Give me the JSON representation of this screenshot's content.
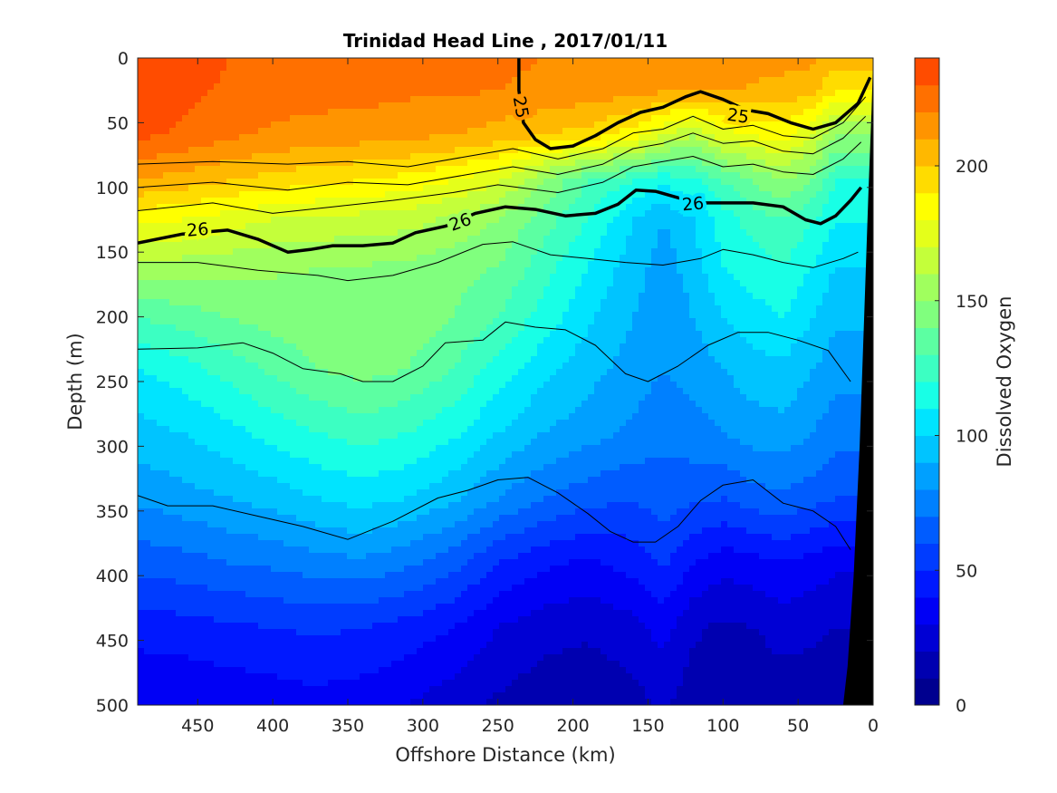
{
  "chart_data": {
    "type": "heatmap",
    "subtype": "filled-contour",
    "title": "Trinidad Head Line , 2017/01/11",
    "xlabel": "Offshore Distance (km)",
    "ylabel": "Depth (m)",
    "colorbar_label": "Dissolved Oxygen",
    "xlim": [
      490,
      0
    ],
    "ylim": [
      0,
      500
    ],
    "x_reversed": true,
    "y_reversed": true,
    "x_ticks": [
      450,
      400,
      350,
      300,
      250,
      200,
      150,
      100,
      50,
      0
    ],
    "x_tick_labels": [
      "450",
      "400",
      "350",
      "300",
      "250",
      "200",
      "150",
      "100",
      "50",
      "0"
    ],
    "y_ticks": [
      0,
      50,
      100,
      150,
      200,
      250,
      300,
      350,
      400,
      450,
      500
    ],
    "y_tick_labels": [
      "0",
      "50",
      "100",
      "150",
      "200",
      "250",
      "300",
      "350",
      "400",
      "450",
      "500"
    ],
    "colorbar_range": [
      0,
      240
    ],
    "colorbar_ticks": [
      0,
      50,
      100,
      150,
      200
    ],
    "colorbar_tick_labels": [
      "0",
      "50",
      "100",
      "150",
      "200"
    ],
    "colorbar_step": 10,
    "colormap": [
      "#00008f",
      "#0000b0",
      "#0000d4",
      "#0000f5",
      "#0018ff",
      "#003cff",
      "#005cff",
      "#0080ff",
      "#00a0ff",
      "#00c4ff",
      "#00e4ff",
      "#18ffe6",
      "#3cffc2",
      "#5cffa2",
      "#80ff7e",
      "#a0ff5e",
      "#c4ff3a",
      "#e4ff1a",
      "#ffff00",
      "#ffdc00",
      "#ffb800",
      "#ff9400",
      "#ff7000",
      "#ff4c00",
      "#ff2a00",
      "#f00000",
      "#d00000",
      "#a00000"
    ],
    "x": [
      490,
      460,
      430,
      400,
      370,
      340,
      310,
      280,
      250,
      220,
      190,
      160,
      140,
      120,
      100,
      80,
      60,
      40,
      25
    ],
    "depths": [
      0,
      25,
      60,
      95,
      125,
      160,
      200,
      240,
      290,
      340,
      390,
      440,
      500
    ],
    "values": [
      [
        238,
        236,
        230,
        228,
        226,
        226,
        224,
        224,
        222,
        220,
        220,
        218,
        218,
        216,
        218,
        215,
        214,
        212,
        205
      ],
      [
        236,
        234,
        228,
        225,
        224,
        224,
        222,
        222,
        220,
        218,
        216,
        214,
        212,
        210,
        212,
        208,
        206,
        204,
        190
      ],
      [
        232,
        228,
        222,
        218,
        216,
        214,
        212,
        210,
        205,
        200,
        196,
        184,
        170,
        160,
        175,
        180,
        185,
        170,
        150
      ],
      [
        210,
        205,
        200,
        196,
        192,
        190,
        186,
        180,
        172,
        150,
        130,
        120,
        112,
        118,
        130,
        140,
        150,
        140,
        120
      ],
      [
        182,
        180,
        175,
        170,
        168,
        166,
        164,
        158,
        150,
        135,
        120,
        100,
        90,
        100,
        115,
        125,
        130,
        120,
        110
      ],
      [
        158,
        156,
        154,
        152,
        150,
        150,
        148,
        144,
        140,
        125,
        110,
        95,
        85,
        95,
        110,
        115,
        120,
        110,
        100
      ],
      [
        130,
        135,
        140,
        144,
        146,
        148,
        146,
        140,
        130,
        116,
        102,
        90,
        82,
        90,
        100,
        106,
        110,
        100,
        92
      ],
      [
        110,
        116,
        124,
        132,
        140,
        144,
        140,
        130,
        116,
        104,
        94,
        86,
        80,
        84,
        90,
        96,
        98,
        90,
        84
      ],
      [
        96,
        100,
        106,
        114,
        120,
        124,
        120,
        112,
        100,
        90,
        84,
        78,
        72,
        76,
        80,
        84,
        86,
        80,
        74
      ],
      [
        82,
        86,
        90,
        94,
        100,
        104,
        100,
        92,
        80,
        70,
        64,
        60,
        66,
        62,
        60,
        66,
        68,
        64,
        60
      ],
      [
        64,
        66,
        70,
        72,
        76,
        78,
        72,
        64,
        50,
        42,
        38,
        44,
        52,
        40,
        34,
        36,
        40,
        36,
        32
      ],
      [
        44,
        46,
        48,
        50,
        52,
        50,
        46,
        40,
        30,
        24,
        22,
        26,
        34,
        22,
        18,
        20,
        24,
        22,
        20
      ],
      [
        30,
        30,
        32,
        34,
        36,
        34,
        30,
        24,
        18,
        14,
        12,
        16,
        22,
        14,
        10,
        12,
        14,
        14,
        12
      ]
    ],
    "contour_lines": [
      {
        "label": "25",
        "bold": true,
        "points": [
          [
            236,
            0
          ],
          [
            236,
            25
          ],
          [
            233,
            50
          ],
          [
            225,
            63
          ],
          [
            215,
            70
          ],
          [
            200,
            68
          ],
          [
            185,
            60
          ],
          [
            170,
            50
          ],
          [
            155,
            42
          ],
          [
            140,
            38
          ],
          [
            125,
            30
          ],
          [
            115,
            26
          ],
          [
            100,
            32
          ],
          [
            85,
            40
          ],
          [
            70,
            43
          ],
          [
            55,
            50
          ],
          [
            40,
            55
          ],
          [
            25,
            50
          ],
          [
            10,
            35
          ],
          [
            2,
            15
          ]
        ]
      },
      {
        "label": "26",
        "bold": true,
        "points": [
          [
            490,
            143
          ],
          [
            460,
            136
          ],
          [
            430,
            133
          ],
          [
            410,
            140
          ],
          [
            390,
            150
          ],
          [
            375,
            148
          ],
          [
            360,
            145
          ],
          [
            340,
            145
          ],
          [
            320,
            143
          ],
          [
            305,
            135
          ],
          [
            285,
            130
          ],
          [
            265,
            120
          ],
          [
            245,
            115
          ],
          [
            225,
            117
          ],
          [
            205,
            122
          ],
          [
            185,
            120
          ],
          [
            170,
            113
          ],
          [
            158,
            102
          ],
          [
            145,
            103
          ],
          [
            130,
            108
          ],
          [
            115,
            112
          ],
          [
            100,
            112
          ],
          [
            80,
            112
          ],
          [
            60,
            115
          ],
          [
            45,
            125
          ],
          [
            35,
            128
          ],
          [
            25,
            122
          ],
          [
            15,
            110
          ],
          [
            8,
            100
          ]
        ]
      },
      {
        "label": "",
        "bold": false,
        "points": [
          [
            490,
            82
          ],
          [
            440,
            80
          ],
          [
            390,
            82
          ],
          [
            350,
            80
          ],
          [
            310,
            84
          ],
          [
            270,
            76
          ],
          [
            240,
            70
          ],
          [
            210,
            78
          ],
          [
            180,
            70
          ],
          [
            160,
            58
          ],
          [
            140,
            55
          ],
          [
            120,
            45
          ],
          [
            100,
            55
          ],
          [
            80,
            52
          ],
          [
            60,
            60
          ],
          [
            40,
            62
          ],
          [
            20,
            50
          ],
          [
            5,
            30
          ]
        ]
      },
      {
        "label": "",
        "bold": false,
        "points": [
          [
            490,
            100
          ],
          [
            440,
            96
          ],
          [
            390,
            102
          ],
          [
            350,
            96
          ],
          [
            310,
            98
          ],
          [
            270,
            90
          ],
          [
            240,
            84
          ],
          [
            210,
            90
          ],
          [
            180,
            82
          ],
          [
            160,
            70
          ],
          [
            140,
            66
          ],
          [
            120,
            58
          ],
          [
            100,
            66
          ],
          [
            80,
            64
          ],
          [
            60,
            72
          ],
          [
            40,
            74
          ],
          [
            20,
            62
          ],
          [
            5,
            45
          ]
        ]
      },
      {
        "label": "",
        "bold": false,
        "points": [
          [
            490,
            118
          ],
          [
            440,
            112
          ],
          [
            400,
            120
          ],
          [
            360,
            115
          ],
          [
            320,
            110
          ],
          [
            280,
            104
          ],
          [
            250,
            98
          ],
          [
            210,
            104
          ],
          [
            180,
            96
          ],
          [
            160,
            84
          ],
          [
            140,
            80
          ],
          [
            120,
            76
          ],
          [
            100,
            84
          ],
          [
            80,
            82
          ],
          [
            60,
            88
          ],
          [
            40,
            90
          ],
          [
            20,
            78
          ],
          [
            8,
            65
          ]
        ]
      },
      {
        "label": "",
        "bold": false,
        "points": [
          [
            490,
            158
          ],
          [
            450,
            158
          ],
          [
            410,
            164
          ],
          [
            370,
            168
          ],
          [
            350,
            172
          ],
          [
            320,
            168
          ],
          [
            290,
            158
          ],
          [
            260,
            144
          ],
          [
            240,
            142
          ],
          [
            215,
            152
          ],
          [
            190,
            155
          ],
          [
            165,
            158
          ],
          [
            140,
            160
          ],
          [
            115,
            155
          ],
          [
            100,
            148
          ],
          [
            80,
            152
          ],
          [
            60,
            158
          ],
          [
            40,
            162
          ],
          [
            20,
            155
          ],
          [
            10,
            150
          ]
        ]
      },
      {
        "label": "",
        "bold": false,
        "points": [
          [
            490,
            225
          ],
          [
            450,
            224
          ],
          [
            420,
            220
          ],
          [
            400,
            228
          ],
          [
            380,
            240
          ],
          [
            355,
            244
          ],
          [
            340,
            250
          ],
          [
            320,
            250
          ],
          [
            300,
            238
          ],
          [
            285,
            220
          ],
          [
            260,
            218
          ],
          [
            245,
            204
          ],
          [
            225,
            208
          ],
          [
            205,
            210
          ],
          [
            185,
            222
          ],
          [
            165,
            244
          ],
          [
            150,
            250
          ],
          [
            130,
            238
          ],
          [
            110,
            222
          ],
          [
            90,
            212
          ],
          [
            70,
            212
          ],
          [
            50,
            218
          ],
          [
            30,
            226
          ],
          [
            15,
            250
          ]
        ]
      },
      {
        "label": "",
        "bold": false,
        "points": [
          [
            490,
            338
          ],
          [
            470,
            346
          ],
          [
            440,
            346
          ],
          [
            410,
            354
          ],
          [
            380,
            362
          ],
          [
            350,
            372
          ],
          [
            320,
            358
          ],
          [
            290,
            340
          ],
          [
            270,
            334
          ],
          [
            250,
            326
          ],
          [
            230,
            324
          ],
          [
            210,
            336
          ],
          [
            190,
            352
          ],
          [
            175,
            366
          ],
          [
            160,
            374
          ],
          [
            145,
            374
          ],
          [
            130,
            362
          ],
          [
            115,
            342
          ],
          [
            100,
            330
          ],
          [
            80,
            326
          ],
          [
            60,
            344
          ],
          [
            40,
            350
          ],
          [
            25,
            362
          ],
          [
            15,
            380
          ]
        ]
      }
    ],
    "bathymetry_fill": "#000000"
  }
}
